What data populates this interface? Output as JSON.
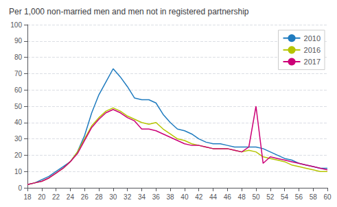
{
  "chart_data": {
    "type": "line",
    "title": "Per 1,000 non-married men and men not in registered partnership",
    "x": [
      18,
      19,
      20,
      21,
      22,
      23,
      24,
      25,
      26,
      27,
      28,
      29,
      30,
      31,
      32,
      33,
      34,
      35,
      36,
      37,
      38,
      39,
      40,
      41,
      42,
      43,
      44,
      45,
      46,
      47,
      48,
      49,
      50,
      51,
      52,
      53,
      54,
      55,
      56,
      57,
      58,
      59,
      60
    ],
    "series": [
      {
        "name": "2010",
        "color": "#1f7bbf",
        "values": [
          2,
          3,
          5,
          7,
          10,
          13,
          16,
          22,
          32,
          46,
          57,
          65,
          73,
          68,
          62,
          55,
          54,
          54,
          52,
          45,
          40,
          36,
          35,
          33,
          30,
          28,
          27,
          27,
          26,
          25,
          25,
          25,
          25,
          24,
          22,
          20,
          18,
          17,
          15,
          14,
          13,
          12,
          12
        ]
      },
      {
        "name": "2016",
        "color": "#b5c400",
        "values": [
          2,
          3,
          4,
          6,
          9,
          12,
          16,
          22,
          30,
          38,
          43,
          47,
          49,
          47,
          44,
          42,
          40,
          39,
          40,
          36,
          33,
          30,
          29,
          27,
          26,
          25,
          24,
          24,
          24,
          23,
          22,
          23,
          22,
          19,
          18,
          17,
          16,
          14,
          13,
          12,
          11,
          10,
          10
        ]
      },
      {
        "name": "2017",
        "color": "#cc0077",
        "values": [
          2,
          3,
          4,
          6,
          9,
          12,
          16,
          21,
          29,
          37,
          42,
          46,
          48,
          46,
          43,
          41,
          36,
          36,
          35,
          33,
          31,
          29,
          27,
          26,
          26,
          25,
          24,
          24,
          24,
          23,
          22,
          25,
          50,
          15,
          19,
          18,
          17,
          16,
          15,
          14,
          13,
          12,
          11
        ]
      }
    ],
    "xlim": [
      18,
      60
    ],
    "ylim": [
      0,
      100
    ],
    "xticks": [
      18,
      20,
      22,
      24,
      26,
      28,
      30,
      32,
      34,
      36,
      38,
      40,
      42,
      44,
      46,
      48,
      50,
      52,
      54,
      56,
      58,
      60
    ],
    "yticks": [
      0,
      10,
      20,
      30,
      40,
      50,
      60,
      70,
      80,
      90,
      100
    ],
    "grid": true,
    "legend": "upper right"
  }
}
